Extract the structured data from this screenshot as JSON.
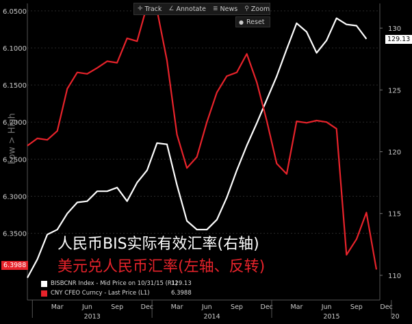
{
  "toolbar": {
    "track_label": "Track",
    "annotate_label": "Annotate",
    "news_label": "News",
    "zoom_label": "Zoom",
    "reset_label": "Reset"
  },
  "overlay": {
    "line1": "人民币BIS实际有效汇率(右轴)",
    "line2": "美元兑人民币汇率(左轴、反转)"
  },
  "legend": {
    "items": [
      {
        "label": "BISBCNR Index - Mid Price on 10/31/15 (R1)",
        "value": "129.13",
        "color": "#ffffff"
      },
      {
        "label": "CNY CFEO Curncy - Last Price (L1)",
        "value": "6.3988",
        "color": "#e8232b"
      }
    ]
  },
  "flags": {
    "right_value": "129.13",
    "left_value": "6.3988"
  },
  "chart_data": {
    "type": "line",
    "left_axis": {
      "title": "Low > High",
      "reversed": true,
      "ylim": [
        6.04,
        6.44
      ],
      "ticks": [
        "6.0500",
        "6.1000",
        "6.1500",
        "6.2000",
        "6.2500",
        "6.3000",
        "6.3500"
      ]
    },
    "right_axis": {
      "ylim": [
        108,
        132
      ],
      "ticks": [
        "130",
        "125",
        "120",
        "115",
        "110"
      ]
    },
    "x_axis": {
      "month_ticks": [
        "Mar",
        "Jun",
        "Sep",
        "Dec",
        "Mar",
        "Jun",
        "Sep",
        "Dec",
        "Mar",
        "Jun",
        "Sep",
        "Dec"
      ],
      "year_labels": [
        "2013",
        "2014",
        "2015",
        "20"
      ]
    },
    "series": [
      {
        "name": "BISBCNR Index - Mid Price on 10/31/15 (R1)",
        "axis": "right",
        "color": "#ffffff",
        "x": [
          "2012-12",
          "2013-01",
          "2013-02",
          "2013-03",
          "2013-04",
          "2013-05",
          "2013-06",
          "2013-07",
          "2013-08",
          "2013-09",
          "2013-10",
          "2013-11",
          "2013-12",
          "2014-01",
          "2014-02",
          "2014-03",
          "2014-04",
          "2014-05",
          "2014-06",
          "2014-07",
          "2014-08",
          "2014-09",
          "2014-10",
          "2014-11",
          "2014-12",
          "2015-01",
          "2015-02",
          "2015-03",
          "2015-04",
          "2015-05",
          "2015-06",
          "2015-07",
          "2015-08",
          "2015-09",
          "2015-10"
        ],
        "values": [
          109.8,
          111.3,
          113.3,
          113.7,
          115.0,
          115.9,
          116.0,
          116.8,
          116.8,
          117.1,
          116.0,
          117.5,
          118.5,
          120.7,
          120.6,
          117.3,
          114.4,
          113.7,
          113.7,
          114.5,
          116.3,
          118.5,
          120.5,
          122.3,
          124.2,
          126.1,
          128.3,
          130.4,
          129.7,
          128.0,
          129.0,
          130.8,
          130.3,
          130.2,
          129.13
        ]
      },
      {
        "name": "CNY CFEO Curncy - Last Price (L1)",
        "axis": "left",
        "color": "#e8232b",
        "x": [
          "2012-12",
          "2013-01",
          "2013-02",
          "2013-03",
          "2013-04",
          "2013-05",
          "2013-06",
          "2013-07",
          "2013-08",
          "2013-09",
          "2013-10",
          "2013-11",
          "2013-12",
          "2014-01",
          "2014-02",
          "2014-03",
          "2014-04",
          "2014-05",
          "2014-06",
          "2014-07",
          "2014-08",
          "2014-09",
          "2014-10",
          "2014-11",
          "2014-12",
          "2015-01",
          "2015-02",
          "2015-03",
          "2015-04",
          "2015-05",
          "2015-06",
          "2015-07",
          "2015-08",
          "2015-09",
          "2015-10",
          "2015-11"
        ],
        "values": [
          6.232,
          6.222,
          6.224,
          6.212,
          6.155,
          6.133,
          6.135,
          6.127,
          6.118,
          6.12,
          6.087,
          6.091,
          6.043,
          6.049,
          6.117,
          6.217,
          6.262,
          6.247,
          6.2,
          6.16,
          6.138,
          6.133,
          6.108,
          6.146,
          6.198,
          6.256,
          6.27,
          6.199,
          6.201,
          6.198,
          6.2,
          6.209,
          6.379,
          6.358,
          6.322,
          6.3988
        ]
      }
    ]
  }
}
